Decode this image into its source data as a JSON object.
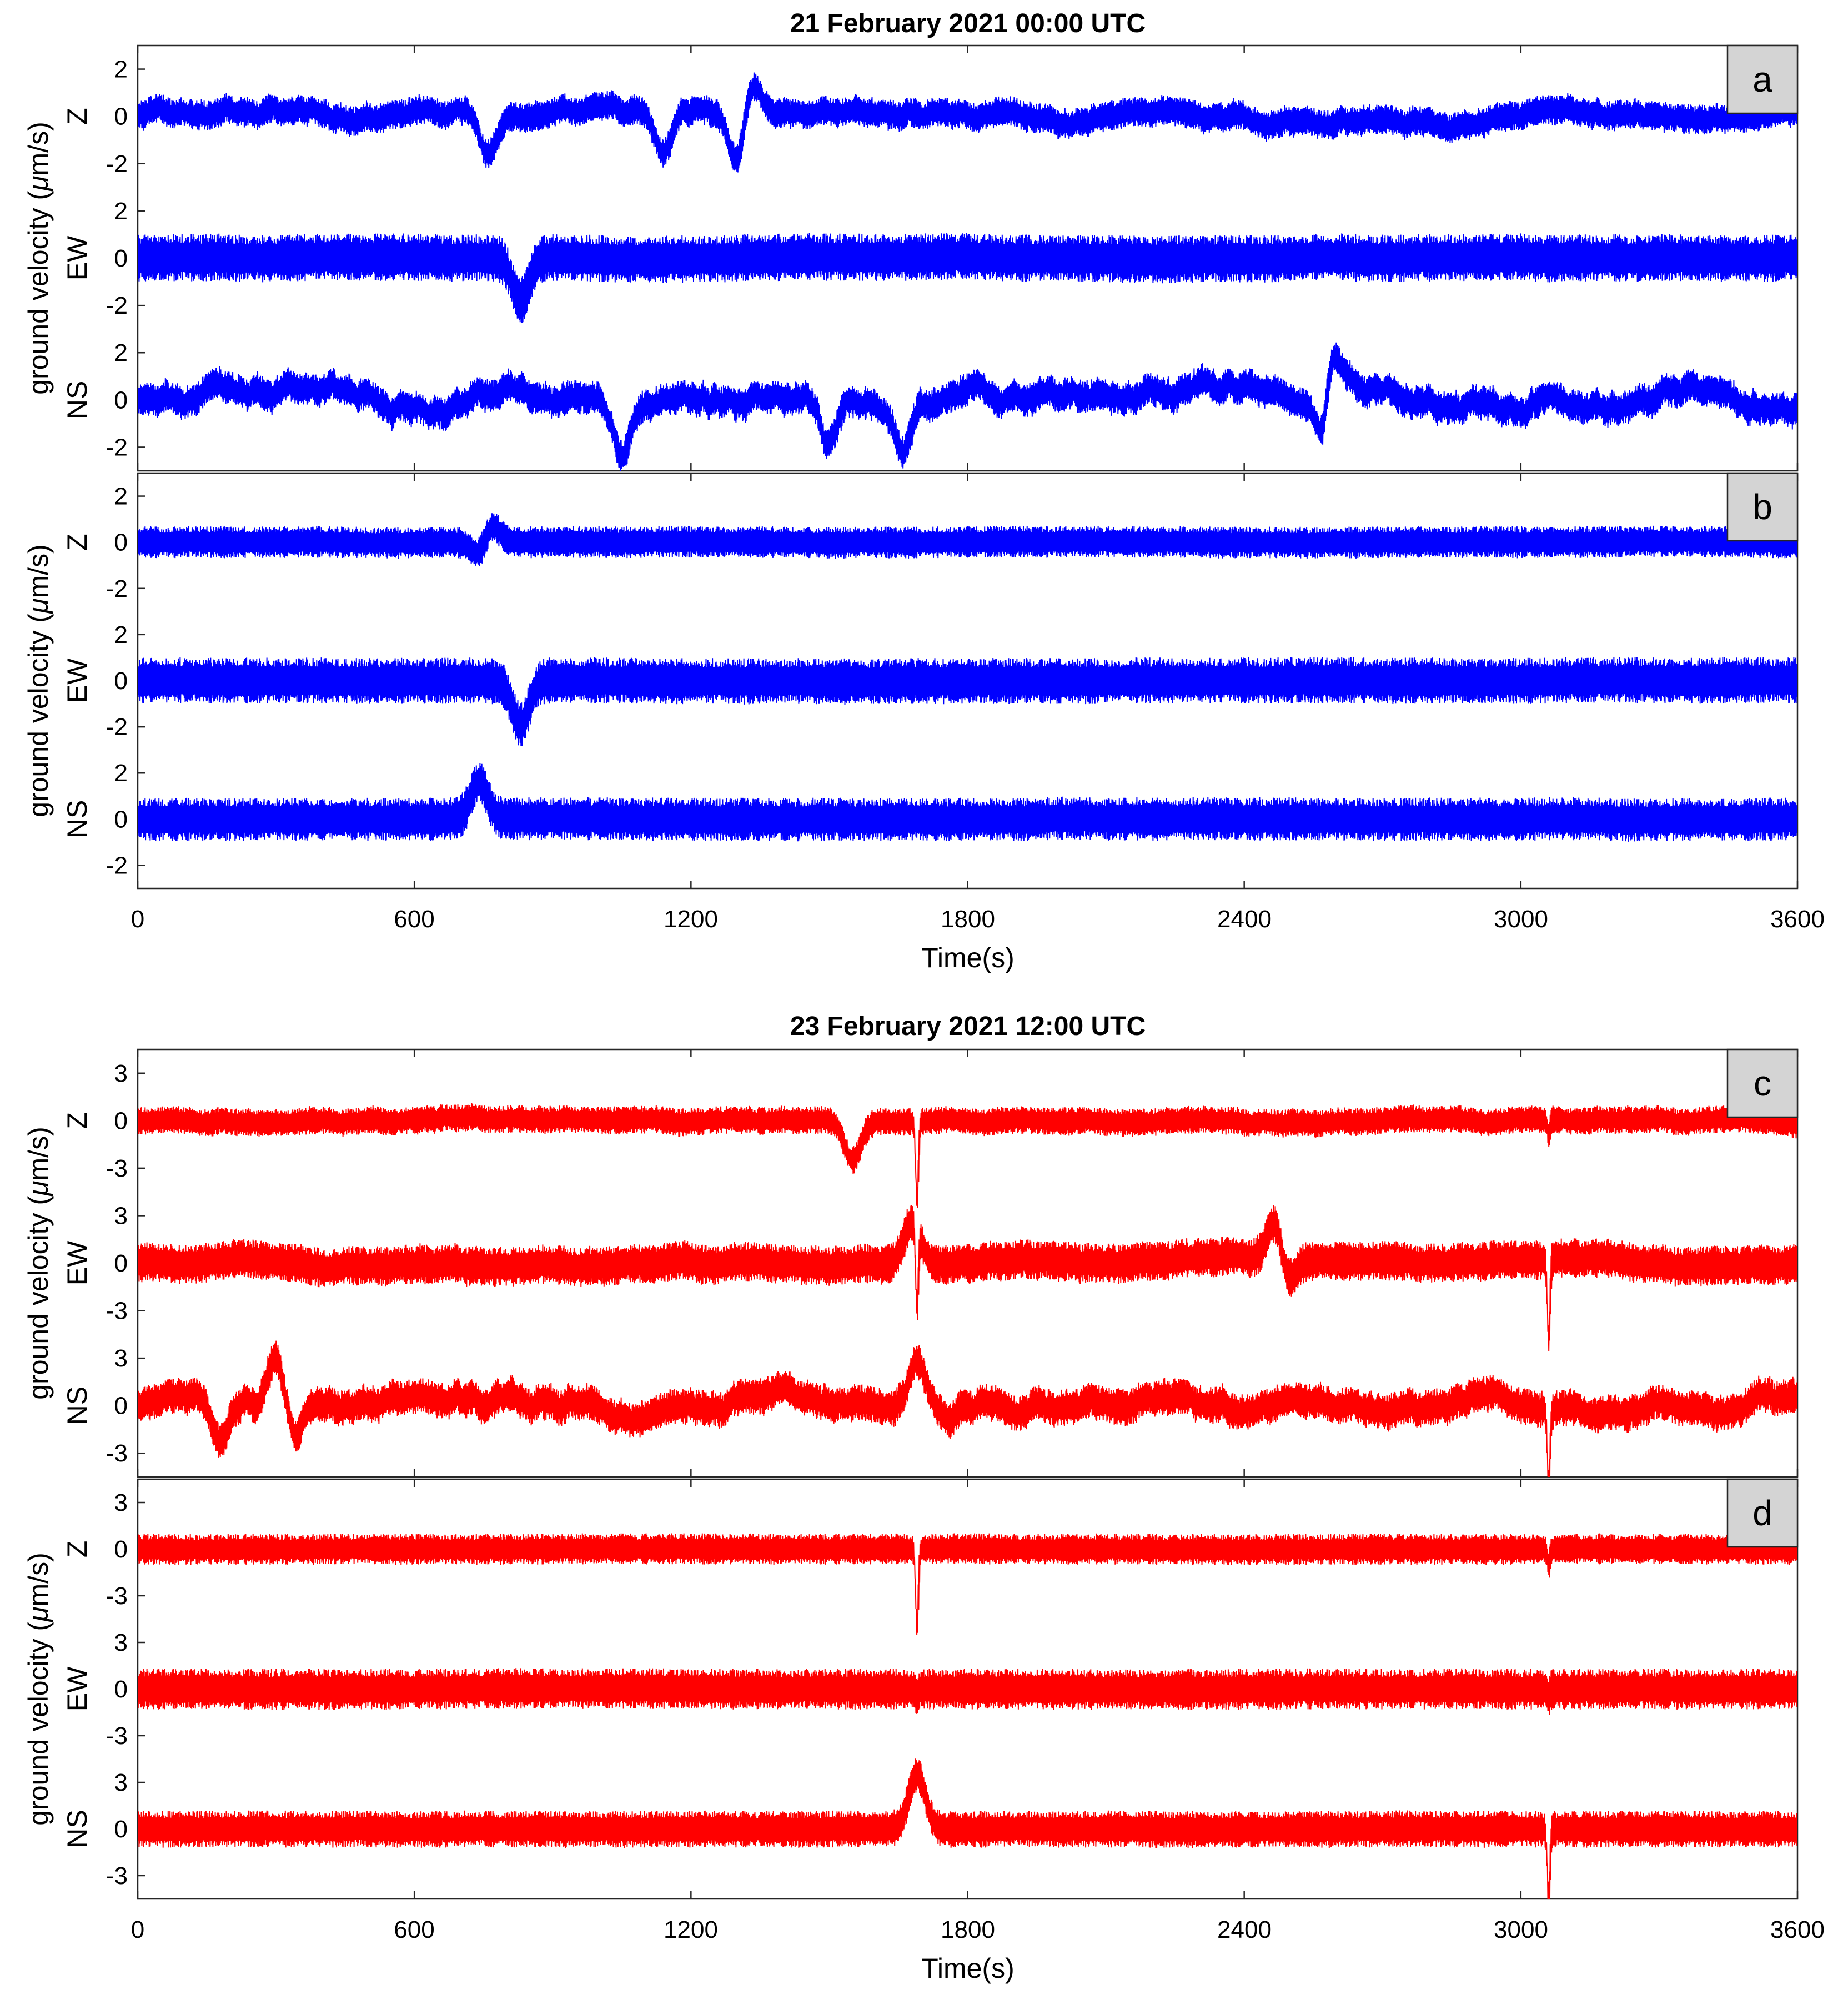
{
  "figure": {
    "charts": [
      {
        "title": "21 February 2021 00:00 UTC",
        "xlabel": "Time(s)",
        "xticks": [
          "0",
          "600",
          "1200",
          "1800",
          "2400",
          "3000",
          "3600"
        ]
      },
      {
        "title": "23 February 2021 12:00 UTC",
        "xlabel": "Time(s)",
        "xticks": [
          "0",
          "600",
          "1200",
          "1800",
          "2400",
          "3000",
          "3600"
        ]
      }
    ]
  },
  "chart_data": [
    {
      "type": "line",
      "title": "21 February 2021 00:00 UTC",
      "xlabel": "Time(s)",
      "xlim": [
        0,
        3600
      ],
      "color": "#0000ff",
      "panels": [
        {
          "label": "a",
          "ylabel_prefix": "ground velocity (",
          "ylabel_mu": "μ",
          "ylabel_suffix": "m/s)",
          "channels": [
            {
              "name": "Z",
              "ticks": [
                "2",
                "0",
                "-2"
              ],
              "tick_values": [
                2,
                0,
                -2
              ],
              "range": [
                -3,
                3
              ],
              "noise": 0.5,
              "wander": 0.6,
              "events": [
                {
                  "t": 760,
                  "amp": -1.6
                },
                {
                  "t": 1140,
                  "amp": -1.8
                },
                {
                  "t": 1300,
                  "amp": -2.4
                },
                {
                  "t": 1330,
                  "amp": 1.6
                }
              ]
            },
            {
              "name": "EW",
              "ticks": [
                "2",
                "0",
                "-2"
              ],
              "tick_values": [
                2,
                0,
                -2
              ],
              "range": [
                -3,
                3
              ],
              "noise": 0.8,
              "wander": 0.1,
              "events": [
                {
                  "t": 830,
                  "amp": -1.8
                }
              ]
            },
            {
              "name": "NS",
              "ticks": [
                "2",
                "0",
                "-2"
              ],
              "tick_values": [
                2,
                0,
                -2
              ],
              "range": [
                -3,
                3
              ],
              "noise": 0.55,
              "wander": 0.9,
              "events": [
                {
                  "t": 1050,
                  "amp": -2.2
                },
                {
                  "t": 1500,
                  "amp": -1.7
                },
                {
                  "t": 1660,
                  "amp": -1.8
                },
                {
                  "t": 2570,
                  "amp": -2.8
                },
                {
                  "t": 2590,
                  "amp": 2.4
                }
              ]
            }
          ]
        },
        {
          "label": "b",
          "ylabel_prefix": "ground velocity (",
          "ylabel_mu": "μ",
          "ylabel_suffix": "m/s)",
          "channels": [
            {
              "name": "Z",
              "ticks": [
                "2",
                "0",
                "-2"
              ],
              "tick_values": [
                2,
                0,
                -2
              ],
              "range": [
                -3,
                3
              ],
              "noise": 0.55,
              "wander": 0.05,
              "events": [
                {
                  "t": 750,
                  "amp": -1.6
                },
                {
                  "t": 760,
                  "amp": 1.8
                }
              ]
            },
            {
              "name": "EW",
              "ticks": [
                "2",
                "0",
                "-2"
              ],
              "tick_values": [
                2,
                0,
                -2
              ],
              "range": [
                -3,
                3
              ],
              "noise": 0.8,
              "wander": 0.05,
              "events": [
                {
                  "t": 830,
                  "amp": -1.9
                }
              ]
            },
            {
              "name": "NS",
              "ticks": [
                "2",
                "0",
                "-2"
              ],
              "tick_values": [
                2,
                0,
                -2
              ],
              "range": [
                -3,
                3
              ],
              "noise": 0.75,
              "wander": 0.05,
              "events": [
                {
                  "t": 740,
                  "amp": 1.6
                }
              ]
            }
          ]
        }
      ]
    },
    {
      "type": "line",
      "title": "23 February 2021 12:00 UTC",
      "xlabel": "Time(s)",
      "xlim": [
        0,
        3600
      ],
      "color": "#ff0000",
      "panels": [
        {
          "label": "c",
          "ylabel_prefix": "ground velocity (",
          "ylabel_mu": "μ",
          "ylabel_suffix": "m/s)",
          "channels": [
            {
              "name": "Z",
              "ticks": [
                "3",
                "0",
                "-3"
              ],
              "tick_values": [
                3,
                0,
                -3
              ],
              "range": [
                -4.5,
                4.5
              ],
              "noise": 0.7,
              "wander": 0.3,
              "events": [
                {
                  "t": 1550,
                  "amp": -2.5
                },
                {
                  "t": 1690,
                  "amp": -5.0
                },
                {
                  "t": 3060,
                  "amp": -5.0
                },
                {
                  "t": 3060,
                  "amp": 4.0
                }
              ]
            },
            {
              "name": "EW",
              "ticks": [
                "3",
                "0",
                "-3"
              ],
              "tick_values": [
                3,
                0,
                -3
              ],
              "range": [
                -4.5,
                4.5
              ],
              "noise": 1.0,
              "wander": 0.5,
              "events": [
                {
                  "t": 1680,
                  "amp": 2.6
                },
                {
                  "t": 1690,
                  "amp": -5.0
                },
                {
                  "t": 2470,
                  "amp": 3.2
                },
                {
                  "t": 2490,
                  "amp": -2.5
                },
                {
                  "t": 3060,
                  "amp": -5.0
                }
              ]
            },
            {
              "name": "NS",
              "ticks": [
                "3",
                "0",
                "-3"
              ],
              "tick_values": [
                3,
                0,
                -3
              ],
              "range": [
                -4.5,
                4.5
              ],
              "noise": 0.9,
              "wander": 1.3,
              "events": [
                {
                  "t": 180,
                  "amp": -2.6
                },
                {
                  "t": 300,
                  "amp": 3.0
                },
                {
                  "t": 340,
                  "amp": -2.6
                },
                {
                  "t": 1690,
                  "amp": 3.0
                },
                {
                  "t": 3060,
                  "amp": -4.5
                }
              ]
            }
          ]
        },
        {
          "label": "d",
          "ylabel_prefix": "ground velocity (",
          "ylabel_mu": "μ",
          "ylabel_suffix": "m/s)",
          "channels": [
            {
              "name": "Z",
              "ticks": [
                "3",
                "0",
                "-3"
              ],
              "tick_values": [
                3,
                0,
                -3
              ],
              "range": [
                -4.5,
                4.5
              ],
              "noise": 0.8,
              "wander": 0.05,
              "events": [
                {
                  "t": 1690,
                  "amp": -5.0
                },
                {
                  "t": 3060,
                  "amp": -5.0
                },
                {
                  "t": 3060,
                  "amp": 4.0
                }
              ]
            },
            {
              "name": "EW",
              "ticks": [
                "3",
                "0",
                "-3"
              ],
              "tick_values": [
                3,
                0,
                -3
              ],
              "range": [
                -4.5,
                4.5
              ],
              "noise": 1.05,
              "wander": 0.05,
              "events": [
                {
                  "t": 1690,
                  "amp": -5.0
                },
                {
                  "t": 1690,
                  "amp": 4.5
                },
                {
                  "t": 3060,
                  "amp": -5.0
                },
                {
                  "t": 3060,
                  "amp": 4.5
                }
              ]
            },
            {
              "name": "NS",
              "ticks": [
                "3",
                "0",
                "-3"
              ],
              "tick_values": [
                3,
                0,
                -3
              ],
              "range": [
                -4.5,
                4.5
              ],
              "noise": 0.95,
              "wander": 0.05,
              "events": [
                {
                  "t": 1690,
                  "amp": 3.5
                },
                {
                  "t": 3060,
                  "amp": -4.5
                }
              ]
            }
          ]
        }
      ]
    }
  ]
}
